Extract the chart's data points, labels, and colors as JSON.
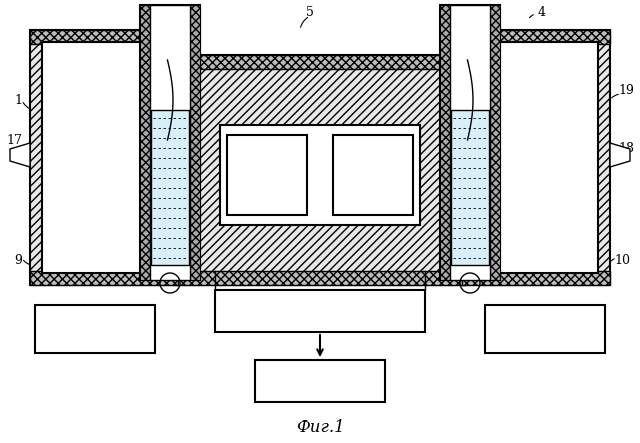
{
  "bg_color": "#ffffff",
  "title": "Фиг.1",
  "title_fontsize": 12,
  "hatch_color": "#000000",
  "stipple_color": "#aaaaaa"
}
